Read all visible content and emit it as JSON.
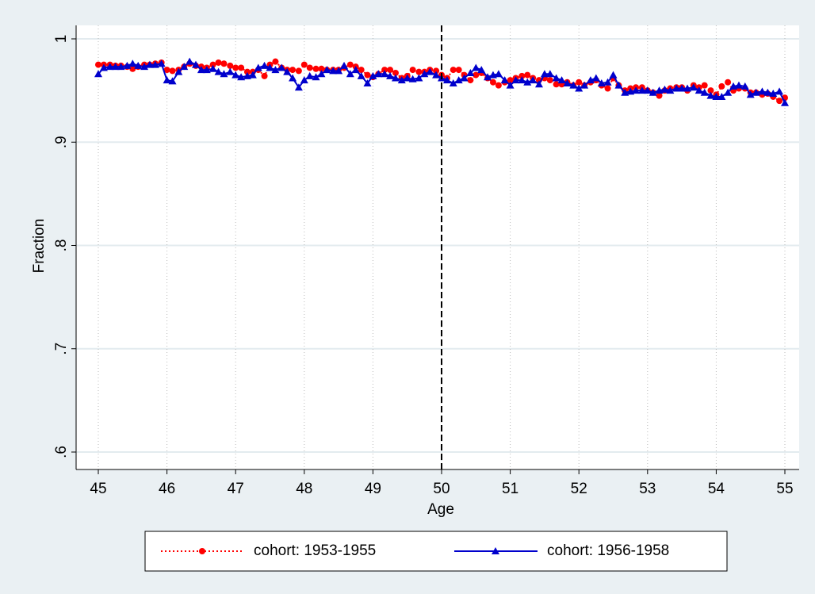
{
  "chart_data": {
    "type": "line",
    "x_label": "Age",
    "y_label": "Fraction",
    "x": [
      45,
      45.08,
      45.17,
      45.25,
      45.33,
      45.42,
      45.5,
      45.58,
      45.67,
      45.75,
      45.83,
      45.92,
      46,
      46.08,
      46.17,
      46.25,
      46.33,
      46.42,
      46.5,
      46.58,
      46.67,
      46.75,
      46.83,
      46.92,
      47,
      47.08,
      47.17,
      47.25,
      47.33,
      47.42,
      47.5,
      47.58,
      47.67,
      47.75,
      47.83,
      47.92,
      48,
      48.08,
      48.17,
      48.25,
      48.33,
      48.42,
      48.5,
      48.58,
      48.67,
      48.75,
      48.83,
      48.92,
      49,
      49.08,
      49.17,
      49.25,
      49.33,
      49.42,
      49.5,
      49.58,
      49.67,
      49.75,
      49.83,
      49.92,
      50,
      50.08,
      50.17,
      50.25,
      50.33,
      50.42,
      50.5,
      50.58,
      50.67,
      50.75,
      50.83,
      50.92,
      51,
      51.08,
      51.17,
      51.25,
      51.33,
      51.42,
      51.5,
      51.58,
      51.67,
      51.75,
      51.83,
      51.92,
      52,
      52.08,
      52.17,
      52.25,
      52.33,
      52.42,
      52.5,
      52.58,
      52.67,
      52.75,
      52.83,
      52.92,
      53,
      53.08,
      53.17,
      53.25,
      53.33,
      53.42,
      53.5,
      53.58,
      53.67,
      53.75,
      53.83,
      53.92,
      54,
      54.08,
      54.17,
      54.25,
      54.33,
      54.42,
      54.5,
      54.58,
      54.67,
      54.75,
      54.83,
      54.92,
      55
    ],
    "series": [
      {
        "name": "cohort: 1953-1955",
        "color": "#ff0000",
        "marker": "circle",
        "line": "dotted",
        "values": [
          0.975,
          0.975,
          0.975,
          0.974,
          0.974,
          0.973,
          0.971,
          0.973,
          0.975,
          0.975,
          0.976,
          0.977,
          0.97,
          0.969,
          0.97,
          0.973,
          0.976,
          0.974,
          0.973,
          0.972,
          0.975,
          0.977,
          0.976,
          0.974,
          0.972,
          0.972,
          0.968,
          0.968,
          0.97,
          0.964,
          0.975,
          0.978,
          0.972,
          0.97,
          0.97,
          0.969,
          0.975,
          0.972,
          0.971,
          0.971,
          0.97,
          0.97,
          0.97,
          0.972,
          0.975,
          0.973,
          0.97,
          0.965,
          0.963,
          0.966,
          0.97,
          0.97,
          0.967,
          0.962,
          0.964,
          0.97,
          0.968,
          0.968,
          0.97,
          0.969,
          0.965,
          0.962,
          0.97,
          0.97,
          0.965,
          0.96,
          0.965,
          0.967,
          0.962,
          0.958,
          0.955,
          0.958,
          0.96,
          0.962,
          0.964,
          0.965,
          0.962,
          0.96,
          0.962,
          0.96,
          0.956,
          0.956,
          0.958,
          0.955,
          0.958,
          0.955,
          0.958,
          0.96,
          0.955,
          0.952,
          0.962,
          0.955,
          0.95,
          0.952,
          0.953,
          0.953,
          0.95,
          0.948,
          0.945,
          0.95,
          0.952,
          0.953,
          0.953,
          0.95,
          0.955,
          0.953,
          0.955,
          0.95,
          0.946,
          0.954,
          0.958,
          0.95,
          0.952,
          0.952,
          0.948,
          0.948,
          0.946,
          0.947,
          0.944,
          0.94,
          0.943
        ]
      },
      {
        "name": "cohort: 1956-1958",
        "color": "#0000cc",
        "marker": "triangle",
        "line": "solid",
        "values": [
          0.966,
          0.972,
          0.973,
          0.973,
          0.973,
          0.974,
          0.976,
          0.974,
          0.973,
          0.975,
          0.975,
          0.976,
          0.96,
          0.959,
          0.968,
          0.973,
          0.978,
          0.975,
          0.97,
          0.97,
          0.971,
          0.968,
          0.966,
          0.968,
          0.965,
          0.963,
          0.964,
          0.965,
          0.972,
          0.974,
          0.972,
          0.97,
          0.972,
          0.968,
          0.962,
          0.953,
          0.96,
          0.964,
          0.963,
          0.966,
          0.97,
          0.969,
          0.969,
          0.974,
          0.966,
          0.97,
          0.964,
          0.957,
          0.964,
          0.966,
          0.966,
          0.964,
          0.962,
          0.96,
          0.962,
          0.961,
          0.962,
          0.966,
          0.968,
          0.965,
          0.962,
          0.96,
          0.957,
          0.96,
          0.962,
          0.967,
          0.972,
          0.97,
          0.963,
          0.965,
          0.966,
          0.96,
          0.955,
          0.96,
          0.96,
          0.958,
          0.96,
          0.956,
          0.966,
          0.966,
          0.962,
          0.96,
          0.957,
          0.955,
          0.952,
          0.955,
          0.96,
          0.962,
          0.957,
          0.958,
          0.965,
          0.955,
          0.948,
          0.949,
          0.95,
          0.95,
          0.95,
          0.948,
          0.95,
          0.951,
          0.95,
          0.952,
          0.952,
          0.952,
          0.953,
          0.95,
          0.948,
          0.945,
          0.944,
          0.944,
          0.948,
          0.954,
          0.955,
          0.954,
          0.946,
          0.948,
          0.949,
          0.948,
          0.947,
          0.949,
          0.938
        ]
      }
    ],
    "xlim": [
      45,
      55
    ],
    "xticks": [
      45,
      46,
      47,
      48,
      49,
      50,
      51,
      52,
      53,
      54,
      55
    ],
    "ylim": [
      0.6,
      1
    ],
    "yticks": [
      {
        "value": 0.6,
        "label": ".6"
      },
      {
        "value": 0.7,
        "label": ".7"
      },
      {
        "value": 0.8,
        "label": ".8"
      },
      {
        "value": 0.9,
        "label": ".9"
      },
      {
        "value": 1,
        "label": "1"
      }
    ],
    "vline": 50,
    "grid": true
  }
}
